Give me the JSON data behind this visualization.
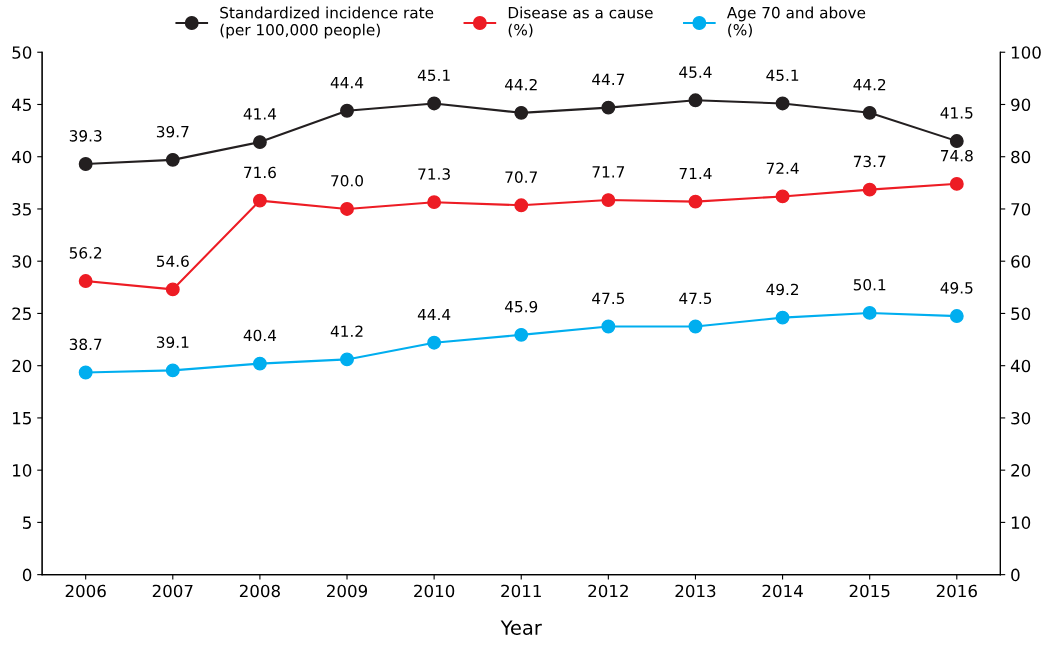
{
  "chart_data": {
    "type": "line",
    "xlabel": "Year",
    "categories": [
      "2006",
      "2007",
      "2008",
      "2009",
      "2010",
      "2011",
      "2012",
      "2013",
      "2014",
      "2015",
      "2016"
    ],
    "series": [
      {
        "name": "Standardized incidence rate\n(per 100,000 people)",
        "color": "#231f20",
        "values": [
          39.3,
          39.7,
          41.4,
          44.4,
          45.1,
          44.2,
          44.7,
          45.4,
          45.1,
          44.2,
          41.5
        ],
        "value_labels": [
          "39.3",
          "39.7",
          "41.4",
          "44.4",
          "45.1",
          "44.2",
          "44.7",
          "45.4",
          "45.1",
          "44.2",
          "41.5"
        ]
      },
      {
        "name": "Disease as a cause\n(%)",
        "color": "#ed1c24",
        "axis": "y2",
        "values": [
          56.2,
          54.6,
          71.6,
          70.0,
          71.3,
          70.7,
          71.7,
          71.4,
          72.4,
          73.7,
          74.8
        ],
        "value_labels": [
          "56.2",
          "54.6",
          "71.6",
          "70.0",
          "71.3",
          "70.7",
          "71.7",
          "71.4",
          "72.4",
          "73.7",
          "74.8"
        ]
      },
      {
        "name": "Age 70 and above\n(%)",
        "color": "#00aeef",
        "axis": "y2",
        "values": [
          38.7,
          39.1,
          40.4,
          41.2,
          44.4,
          45.9,
          47.5,
          47.5,
          49.2,
          50.1,
          49.5
        ],
        "value_labels": [
          "38.7",
          "39.1",
          "40.4",
          "41.2",
          "44.4",
          "45.9",
          "47.5",
          "47.5",
          "49.2",
          "50.1",
          "49.5"
        ]
      }
    ],
    "ylim": [
      0,
      50
    ],
    "yticks": [
      0,
      5,
      10,
      15,
      20,
      25,
      30,
      35,
      40,
      45,
      50
    ],
    "y2lim": [
      0,
      100
    ],
    "y2ticks": [
      0,
      10,
      20,
      30,
      40,
      50,
      60,
      70,
      80,
      90,
      100
    ],
    "marker": "circle",
    "line_style": "solid",
    "legend": "top",
    "grid": false
  }
}
